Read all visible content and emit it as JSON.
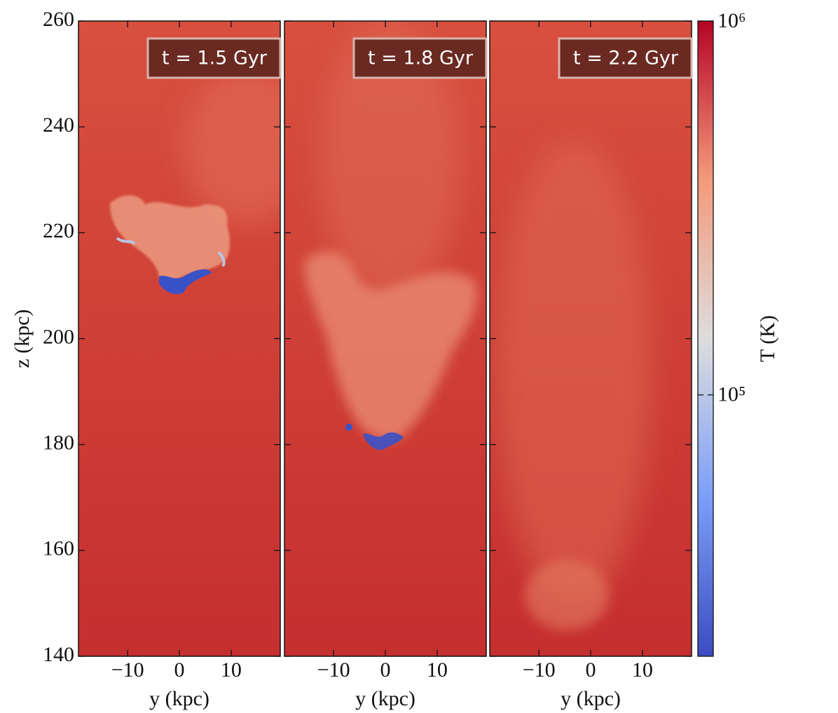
{
  "chart_data": [
    {
      "type": "heatmap",
      "title": "t = 1.5 Gyr",
      "x_label": "y  (kpc)",
      "y_label": "z  (kpc)",
      "xlim": [
        -19.5,
        19.5
      ],
      "ylim": [
        140,
        260
      ],
      "xticks": [
        {
          "value": -10,
          "label": "−10"
        },
        0,
        10
      ],
      "yticks": [
        140,
        160,
        180,
        200,
        220,
        240,
        260
      ]
    },
    {
      "type": "heatmap",
      "title": "t = 1.8 Gyr",
      "x_label": "y  (kpc)",
      "xlim": [
        -19.5,
        19.5
      ],
      "ylim": [
        140,
        260
      ],
      "xticks": [
        {
          "value": -10,
          "label": "−10"
        },
        0,
        10
      ]
    },
    {
      "type": "heatmap",
      "title": "t = 2.2 Gyr",
      "x_label": "y  (kpc)",
      "xlim": [
        -19.5,
        19.5
      ],
      "ylim": [
        140,
        260
      ],
      "xticks": [
        {
          "value": -10,
          "label": "−10"
        },
        0,
        10
      ]
    },
    {
      "type": "colorbar",
      "label": "T (K)",
      "scale": "log",
      "clim": [
        20000,
        1000000
      ],
      "ticks": [
        {
          "value": 100000,
          "label": "10⁵"
        },
        {
          "value": 1000000,
          "label": "10⁶"
        }
      ],
      "colors": [
        "#3b4cc0",
        "#7b9ff9",
        "#dddddd",
        "#f49a7b",
        "#b40426"
      ]
    }
  ]
}
